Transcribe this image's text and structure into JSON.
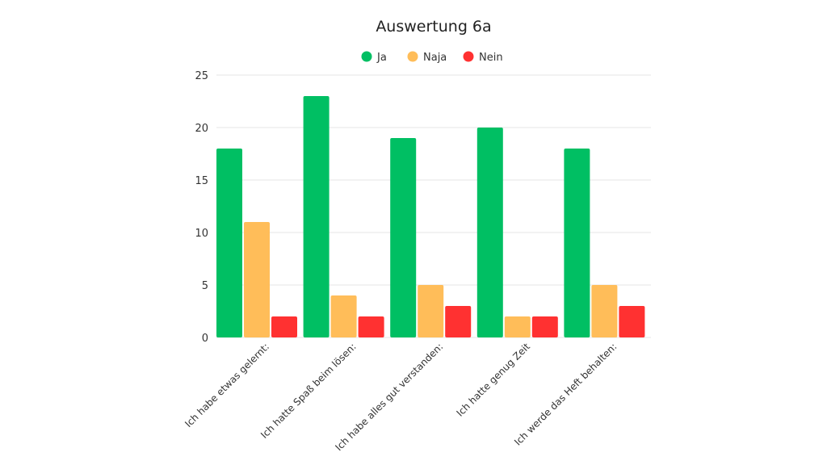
{
  "chart_data": {
    "type": "bar",
    "title": "Auswertung 6a",
    "xlabel": "",
    "ylabel": "",
    "ylim": [
      0,
      25
    ],
    "yticks": [
      0,
      5,
      10,
      15,
      20,
      25
    ],
    "grid": true,
    "legend_position": "top",
    "categories": [
      "Ich habe etwas gelernt:",
      "Ich hatte Spaß beim lösen:",
      "Ich habe alles gut verstanden:",
      "Ich hatte genug Zeit",
      "Ich werde das Heft behalten:"
    ],
    "series": [
      {
        "name": "Ja",
        "color": "#00bf63",
        "values": [
          18,
          23,
          19,
          20,
          18
        ]
      },
      {
        "name": "Naja",
        "color": "#ffbd59",
        "values": [
          11,
          4,
          5,
          2,
          5
        ]
      },
      {
        "name": "Nein",
        "color": "#ff3131",
        "values": [
          2,
          2,
          3,
          2,
          3
        ]
      }
    ]
  }
}
